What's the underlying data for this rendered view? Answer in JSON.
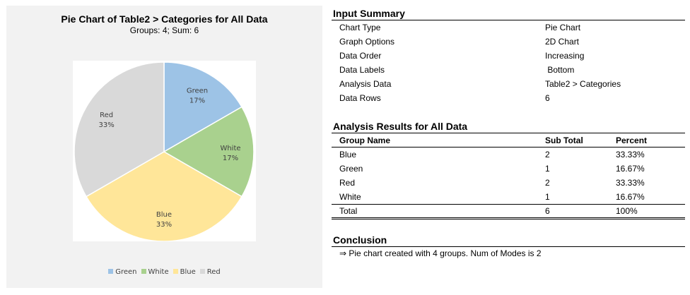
{
  "chart_data": {
    "type": "pie",
    "title": "Pie Chart of Table2 > Categories for All Data",
    "subtitle": "Groups: 4; Sum: 6",
    "slices": [
      {
        "name": "Green",
        "value": 1,
        "label_pct": "17%",
        "color": "#9dc3e6"
      },
      {
        "name": "White",
        "value": 1,
        "label_pct": "17%",
        "color": "#a9d18e"
      },
      {
        "name": "Blue",
        "value": 2,
        "label_pct": "33%",
        "color": "#ffe699"
      },
      {
        "name": "Red",
        "value": 2,
        "label_pct": "33%",
        "color": "#d9d9d9"
      }
    ],
    "legend": [
      "Green",
      "White",
      "Blue",
      "Red"
    ],
    "legend_position": "bottom"
  },
  "input_summary": {
    "header": "Input Summary",
    "rows": [
      {
        "label": "Chart Type",
        "value": "Pie Chart"
      },
      {
        "label": "Graph Options",
        "value": "2D Chart"
      },
      {
        "label": "Data Order",
        "value": "Increasing"
      },
      {
        "label": "Data Labels",
        "value": " Bottom"
      },
      {
        "label": "Analysis Data",
        "value": "Table2 > Categories"
      },
      {
        "label": "Data Rows",
        "value": "6"
      }
    ]
  },
  "analysis": {
    "header": "Analysis Results for All Data",
    "columns": [
      "Group Name",
      "Sub Total",
      "Percent"
    ],
    "rows": [
      [
        "Blue",
        "2",
        "33.33%"
      ],
      [
        "Green",
        "1",
        "16.67%"
      ],
      [
        "Red",
        "2",
        "33.33%"
      ],
      [
        "White",
        "1",
        "16.67%"
      ]
    ],
    "total": [
      "Total",
      "6",
      "100%"
    ]
  },
  "conclusion": {
    "header": "Conclusion",
    "text": "⇒ Pie chart created with 4 groups. Num of Modes is 2"
  }
}
